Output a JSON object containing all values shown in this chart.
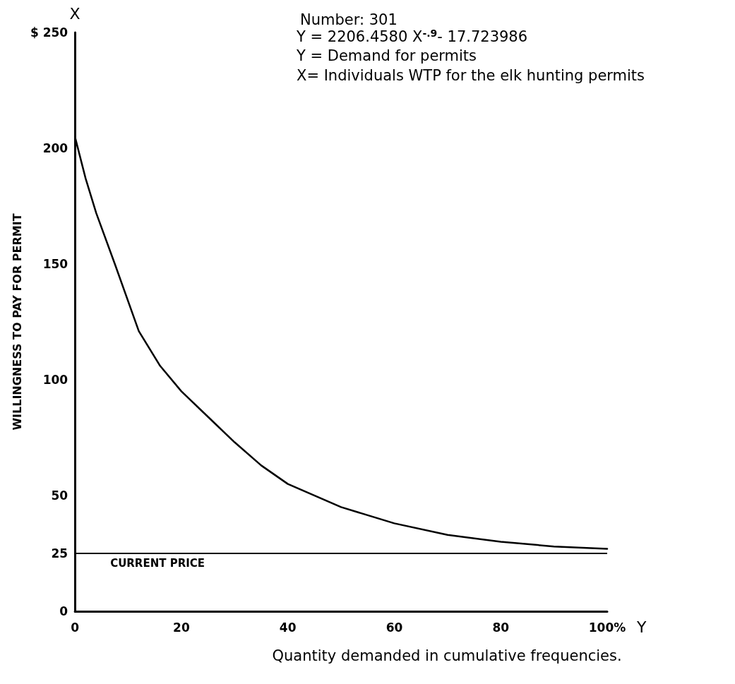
{
  "chart_data": {
    "type": "line",
    "title": "Number: 301",
    "annotations": [
      "Y = 2206.4580 X$^{-.9}$- 17.723986",
      "Y = Demand for permits",
      "X= Individuals WTP for the elk hunting permits",
      "X",
      "Y"
    ],
    "xlabel": "Quantity demanded in cumulative frequencies.",
    "ylabel": "WILLINGNESS TO PAY FOR PERMIT",
    "x": [
      0,
      2,
      4,
      7.5,
      12,
      16,
      20,
      25,
      30,
      35,
      40,
      50,
      60,
      70,
      80,
      90,
      100
    ],
    "series": [
      {
        "color": "#000000",
        "values": [
          205,
          187,
          172,
          150,
          121,
          106,
          95,
          84,
          73,
          63,
          55,
          45,
          38,
          33,
          30,
          28,
          27
        ]
      }
    ],
    "xlim": [
      0,
      100
    ],
    "xticks": [
      0,
      20,
      40,
      60,
      80,
      {
        "value": 100,
        "label": "100%"
      }
    ],
    "ylim": [
      0,
      250
    ],
    "yticks": [
      0,
      25,
      50,
      100,
      150,
      200,
      {
        "value": 250,
        "label": "$ 250"
      }
    ],
    "ref_lines": [
      {
        "axis": "y",
        "value": 25,
        "label": "CURRENT PRICE",
        "color": "#000000"
      }
    ],
    "grid": false,
    "marker": "none",
    "line_style": "solid"
  }
}
